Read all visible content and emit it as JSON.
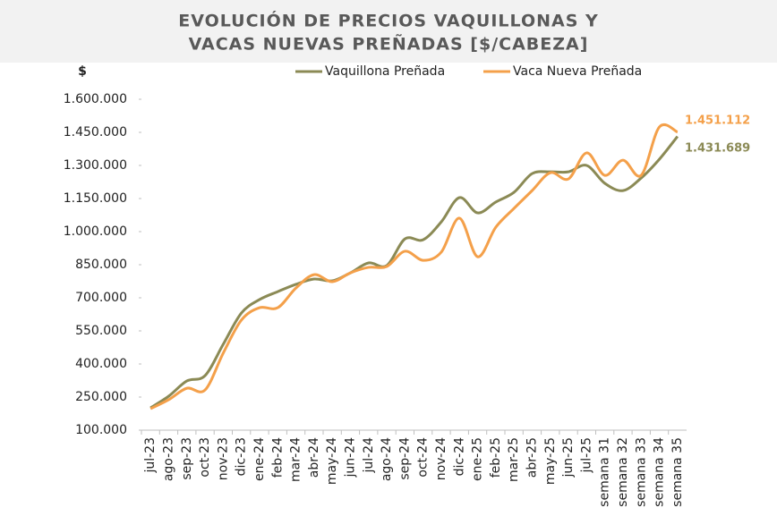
{
  "chart_data": {
    "type": "line",
    "title": [
      "EVOLUCIÓN DE PRECIOS VAQUILLONAS Y",
      "VACAS NUEVAS PREÑADAS [$/CABEZA]"
    ],
    "y_label": "$",
    "categories": [
      "jul-23",
      "ago-23",
      "sep-23",
      "oct-23",
      "nov-23",
      "dic-23",
      "ene-24",
      "feb-24",
      "mar-24",
      "abr-24",
      "may-24",
      "jun-24",
      "jul-24",
      "ago-24",
      "sep-24",
      "oct-24",
      "nov-24",
      "dic-24",
      "ene-25",
      "feb-25",
      "mar-25",
      "abr-25",
      "may-25",
      "jun-25",
      "jul-25",
      "semana 31",
      "semana 32",
      "semana 33",
      "semana 34",
      "semana 35"
    ],
    "series": [
      {
        "name": "Vaquillona Preñada",
        "color": "#8b8a55",
        "values": [
          201000,
          254000,
          323000,
          347000,
          489000,
          631000,
          692000,
          728000,
          761000,
          785000,
          777000,
          813000,
          858000,
          846000,
          967000,
          963000,
          1044000,
          1154000,
          1085000,
          1134000,
          1178000,
          1263000,
          1271000,
          1271000,
          1300000,
          1219000,
          1186000,
          1243000,
          1328000,
          1431689
        ],
        "value_labels": [
          null,
          null,
          null,
          null,
          null,
          null,
          null,
          null,
          null,
          null,
          null,
          null,
          null,
          null,
          null,
          null,
          null,
          null,
          null,
          null,
          null,
          null,
          null,
          null,
          null,
          null,
          null,
          null,
          null,
          "1.431.689"
        ]
      },
      {
        "name": "Vaca Nueva Preñada",
        "color": "#f4a04a",
        "values": [
          197000,
          238000,
          290000,
          282000,
          449000,
          599000,
          655000,
          655000,
          744000,
          805000,
          773000,
          813000,
          838000,
          842000,
          911000,
          870000,
          907000,
          1061000,
          886000,
          1020000,
          1105000,
          1186000,
          1267000,
          1239000,
          1357000,
          1255000,
          1324000,
          1255000,
          1474000,
          1451112
        ],
        "value_labels": [
          null,
          null,
          null,
          null,
          null,
          null,
          null,
          null,
          null,
          null,
          null,
          null,
          null,
          null,
          null,
          null,
          null,
          null,
          null,
          null,
          null,
          null,
          null,
          null,
          null,
          null,
          null,
          null,
          null,
          "1.451.112"
        ]
      }
    ],
    "ylim": [
      100000,
      1600000
    ],
    "yticks": [
      {
        "value": 100000,
        "label": "100.000"
      },
      {
        "value": 250000,
        "label": "250.000"
      },
      {
        "value": 400000,
        "label": "400.000"
      },
      {
        "value": 550000,
        "label": "550.000"
      },
      {
        "value": 700000,
        "label": "700.000"
      },
      {
        "value": 850000,
        "label": "850.000"
      },
      {
        "value": 1000000,
        "label": "1.000.000"
      },
      {
        "value": 1150000,
        "label": "1.150.000"
      },
      {
        "value": 1300000,
        "label": "1.300.000"
      },
      {
        "value": 1450000,
        "label": "1.450.000"
      },
      {
        "value": 1600000,
        "label": "1.600.000"
      }
    ],
    "grid": false,
    "legend": "top"
  }
}
